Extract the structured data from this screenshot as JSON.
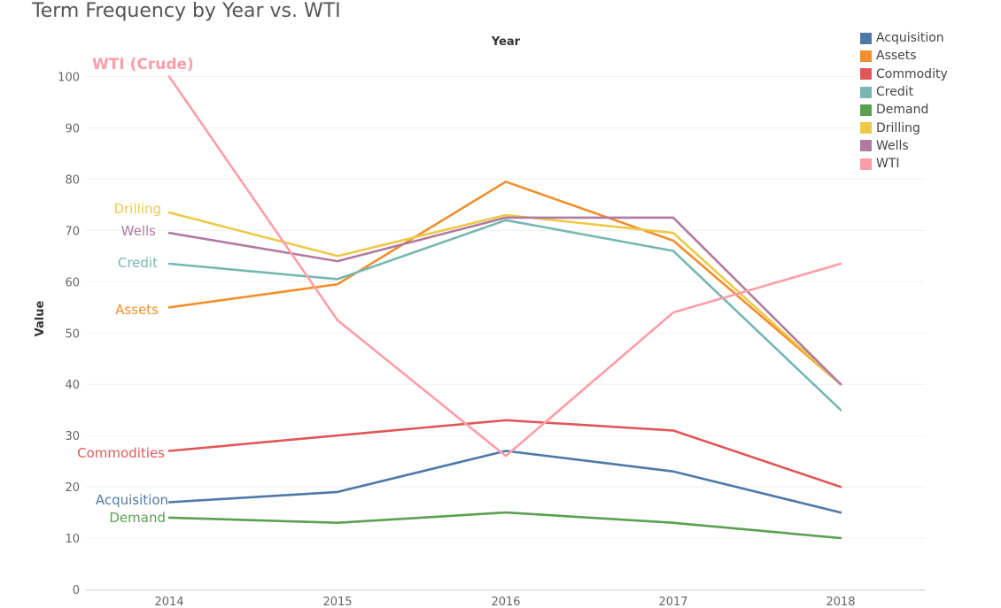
{
  "title": "Term Frequency by Year vs. WTI",
  "legend": {
    "items": [
      {
        "label": "Acquisition",
        "color": "#4e79a7"
      },
      {
        "label": "Assets",
        "color": "#f28e2b"
      },
      {
        "label": "Commodity",
        "color": "#e15759"
      },
      {
        "label": "Credit",
        "color": "#76b7b2"
      },
      {
        "label": "Demand",
        "color": "#59a14f"
      },
      {
        "label": "Drilling",
        "color": "#edc948"
      },
      {
        "label": "Wells",
        "color": "#b07aa1"
      },
      {
        "label": "WTI",
        "color": "#ff9da7"
      }
    ]
  },
  "chart_data": {
    "type": "line",
    "title": "Term Frequency by Year vs. WTI",
    "xlabel": "Year",
    "ylabel": "Value",
    "x": [
      "2014",
      "2015",
      "2016",
      "2017",
      "2018"
    ],
    "ylim": [
      0,
      105
    ],
    "yticks": [
      0,
      10,
      20,
      30,
      40,
      50,
      60,
      70,
      80,
      90,
      100
    ],
    "grid": true,
    "legend_position": "top-right",
    "series": [
      {
        "name": "Acquisition",
        "label": "Acquisition",
        "color": "#4e79a7",
        "values": [
          17,
          19,
          27,
          23,
          15
        ]
      },
      {
        "name": "Assets",
        "label": "Assets",
        "color": "#f28e2b",
        "values": [
          55,
          59.5,
          79.5,
          68,
          40
        ]
      },
      {
        "name": "Commodity",
        "label": "Commodities",
        "color": "#e15759",
        "values": [
          27,
          30,
          33,
          31,
          20
        ]
      },
      {
        "name": "Credit",
        "label": "Credit",
        "color": "#76b7b2",
        "values": [
          63.5,
          60.5,
          72,
          66,
          35
        ]
      },
      {
        "name": "Demand",
        "label": "Demand",
        "color": "#59a14f",
        "values": [
          14,
          13,
          15,
          13,
          10
        ]
      },
      {
        "name": "Drilling",
        "label": "Drilling",
        "color": "#edc948",
        "values": [
          73.5,
          65,
          73,
          69.5,
          40
        ]
      },
      {
        "name": "Wells",
        "label": "Wells",
        "color": "#b07aa1",
        "values": [
          69.5,
          64,
          72.5,
          72.5,
          40
        ]
      },
      {
        "name": "WTI",
        "label": "WTI (Crude)",
        "color": "#ff9da7",
        "values": [
          100,
          52.5,
          26,
          54,
          63.5
        ]
      }
    ]
  }
}
